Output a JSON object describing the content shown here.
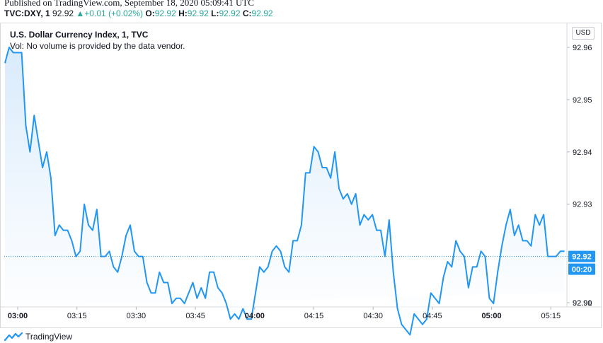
{
  "header": {
    "published": "Published on TradingView.com, September 18, 2020 05:09:41 UTC",
    "symbol": "TVC:DXY, 1",
    "last": "92.92",
    "change": "+0.01 (+0.02%)",
    "o_label": "O:",
    "o_value": "92.92",
    "h_label": "H:",
    "h_value": "92.92",
    "l_label": "L:",
    "l_value": "92.92",
    "c_label": "C:",
    "c_value": "92.92"
  },
  "legend": {
    "title": "U.S. Dollar Currency Index, 1, TVC",
    "volume_note": "Vol: No volume is provided by the data vendor."
  },
  "price_axis": {
    "currency": "USD",
    "last_price_label": "92.92",
    "countdown_label": "00:20"
  },
  "footer": {
    "brand": "TradingView"
  },
  "colors": {
    "line": "#2196f3",
    "area_top": "#d6e9fb",
    "area_bottom": "#ffffff",
    "price_tag": "#2196f3",
    "up": "#26a69a"
  },
  "chart_data": {
    "type": "area",
    "xlabel": "",
    "ylabel": "",
    "ylim": [
      92.9,
      92.963
    ],
    "x_ticks": [
      "03:00",
      "03:15",
      "03:30",
      "03:45",
      "04:00",
      "04:15",
      "04:30",
      "04:45",
      "05:00",
      "05:15"
    ],
    "y_ticks": [
      "92.96",
      "92.95",
      "92.94",
      "92.93",
      "92.92",
      "92.91",
      "92.90"
    ],
    "grid": false,
    "last_price": 92.92,
    "series": [
      {
        "values": [
          92.957,
          92.96,
          92.959,
          92.959,
          92.959,
          92.945,
          92.94,
          92.947,
          92.942,
          92.937,
          92.94,
          92.935,
          92.924,
          92.926,
          92.925,
          92.925,
          92.923,
          92.92,
          92.921,
          92.93,
          92.926,
          92.925,
          92.929,
          92.92,
          92.92,
          92.921,
          92.918,
          92.917,
          92.92,
          92.924,
          92.926,
          92.921,
          92.92,
          92.92,
          92.915,
          92.913,
          92.913,
          92.917,
          92.915,
          92.915,
          92.911,
          92.912,
          92.912,
          92.911,
          92.913,
          92.915,
          92.912,
          92.914,
          92.912,
          92.917,
          92.917,
          92.914,
          92.913,
          92.911,
          92.908,
          92.909,
          92.908,
          92.91,
          92.908,
          92.908,
          92.913,
          92.918,
          92.917,
          92.918,
          92.921,
          92.922,
          92.921,
          92.918,
          92.917,
          92.923,
          92.923,
          92.926,
          92.936,
          92.936,
          92.941,
          92.94,
          92.937,
          92.937,
          92.935,
          92.94,
          92.933,
          92.931,
          92.932,
          92.93,
          92.932,
          92.926,
          92.928,
          92.927,
          92.928,
          92.925,
          92.925,
          92.92,
          92.927,
          92.917,
          92.91,
          92.907,
          92.906,
          92.905,
          92.909,
          92.908,
          92.907,
          92.908,
          92.913,
          92.912,
          92.911,
          92.916,
          92.919,
          92.918,
          92.923,
          92.921,
          92.92,
          92.914,
          92.918,
          92.918,
          92.921,
          92.92,
          92.912,
          92.911,
          92.917,
          92.922,
          92.926,
          92.929,
          92.924,
          92.926,
          92.923,
          92.923,
          92.922,
          92.928,
          92.926,
          92.928,
          92.92,
          92.92,
          92.92,
          92.921,
          92.921
        ]
      }
    ]
  }
}
